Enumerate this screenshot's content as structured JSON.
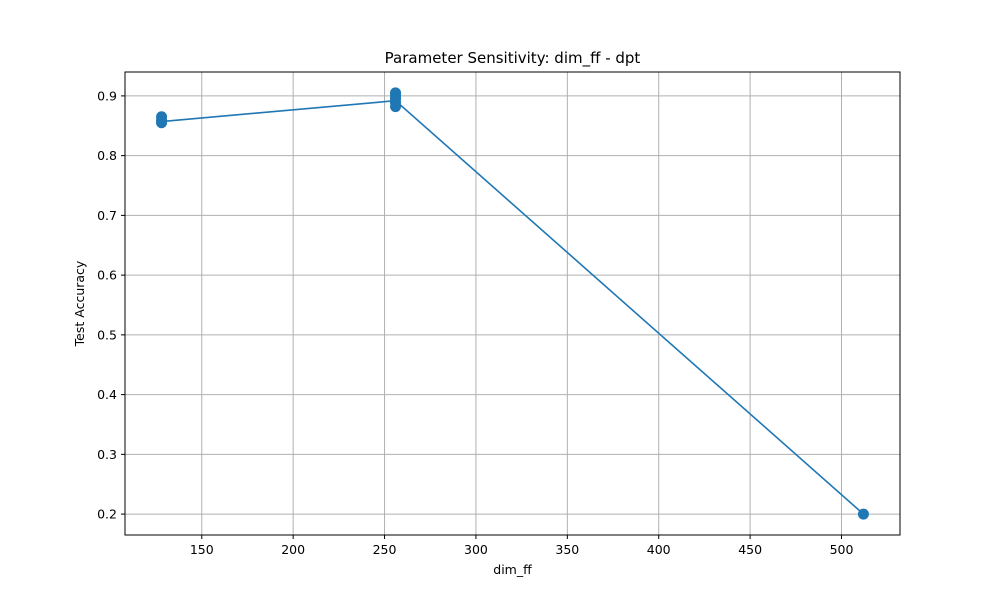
{
  "chart_data": {
    "type": "line",
    "title": "Parameter Sensitivity: dim_ff - dpt",
    "xlabel": "dim_ff",
    "ylabel": "Test Accuracy",
    "xlim": [
      108,
      532
    ],
    "ylim": [
      0.165,
      0.94
    ],
    "xticks": [
      150,
      200,
      250,
      300,
      350,
      400,
      450,
      500
    ],
    "yticks": [
      0.2,
      0.3,
      0.4,
      0.5,
      0.6,
      0.7,
      0.8,
      0.9
    ],
    "grid": true,
    "legend": "none",
    "series": [
      {
        "color": "#1f77b4",
        "line": {
          "x": [
            128,
            256,
            512
          ],
          "y": [
            0.857,
            0.892,
            0.2
          ]
        },
        "points": {
          "x": [
            128,
            128,
            128,
            256,
            256,
            256,
            256,
            256,
            512
          ],
          "y": [
            0.855,
            0.859,
            0.865,
            0.882,
            0.889,
            0.895,
            0.9,
            0.905,
            0.2
          ]
        }
      }
    ]
  }
}
